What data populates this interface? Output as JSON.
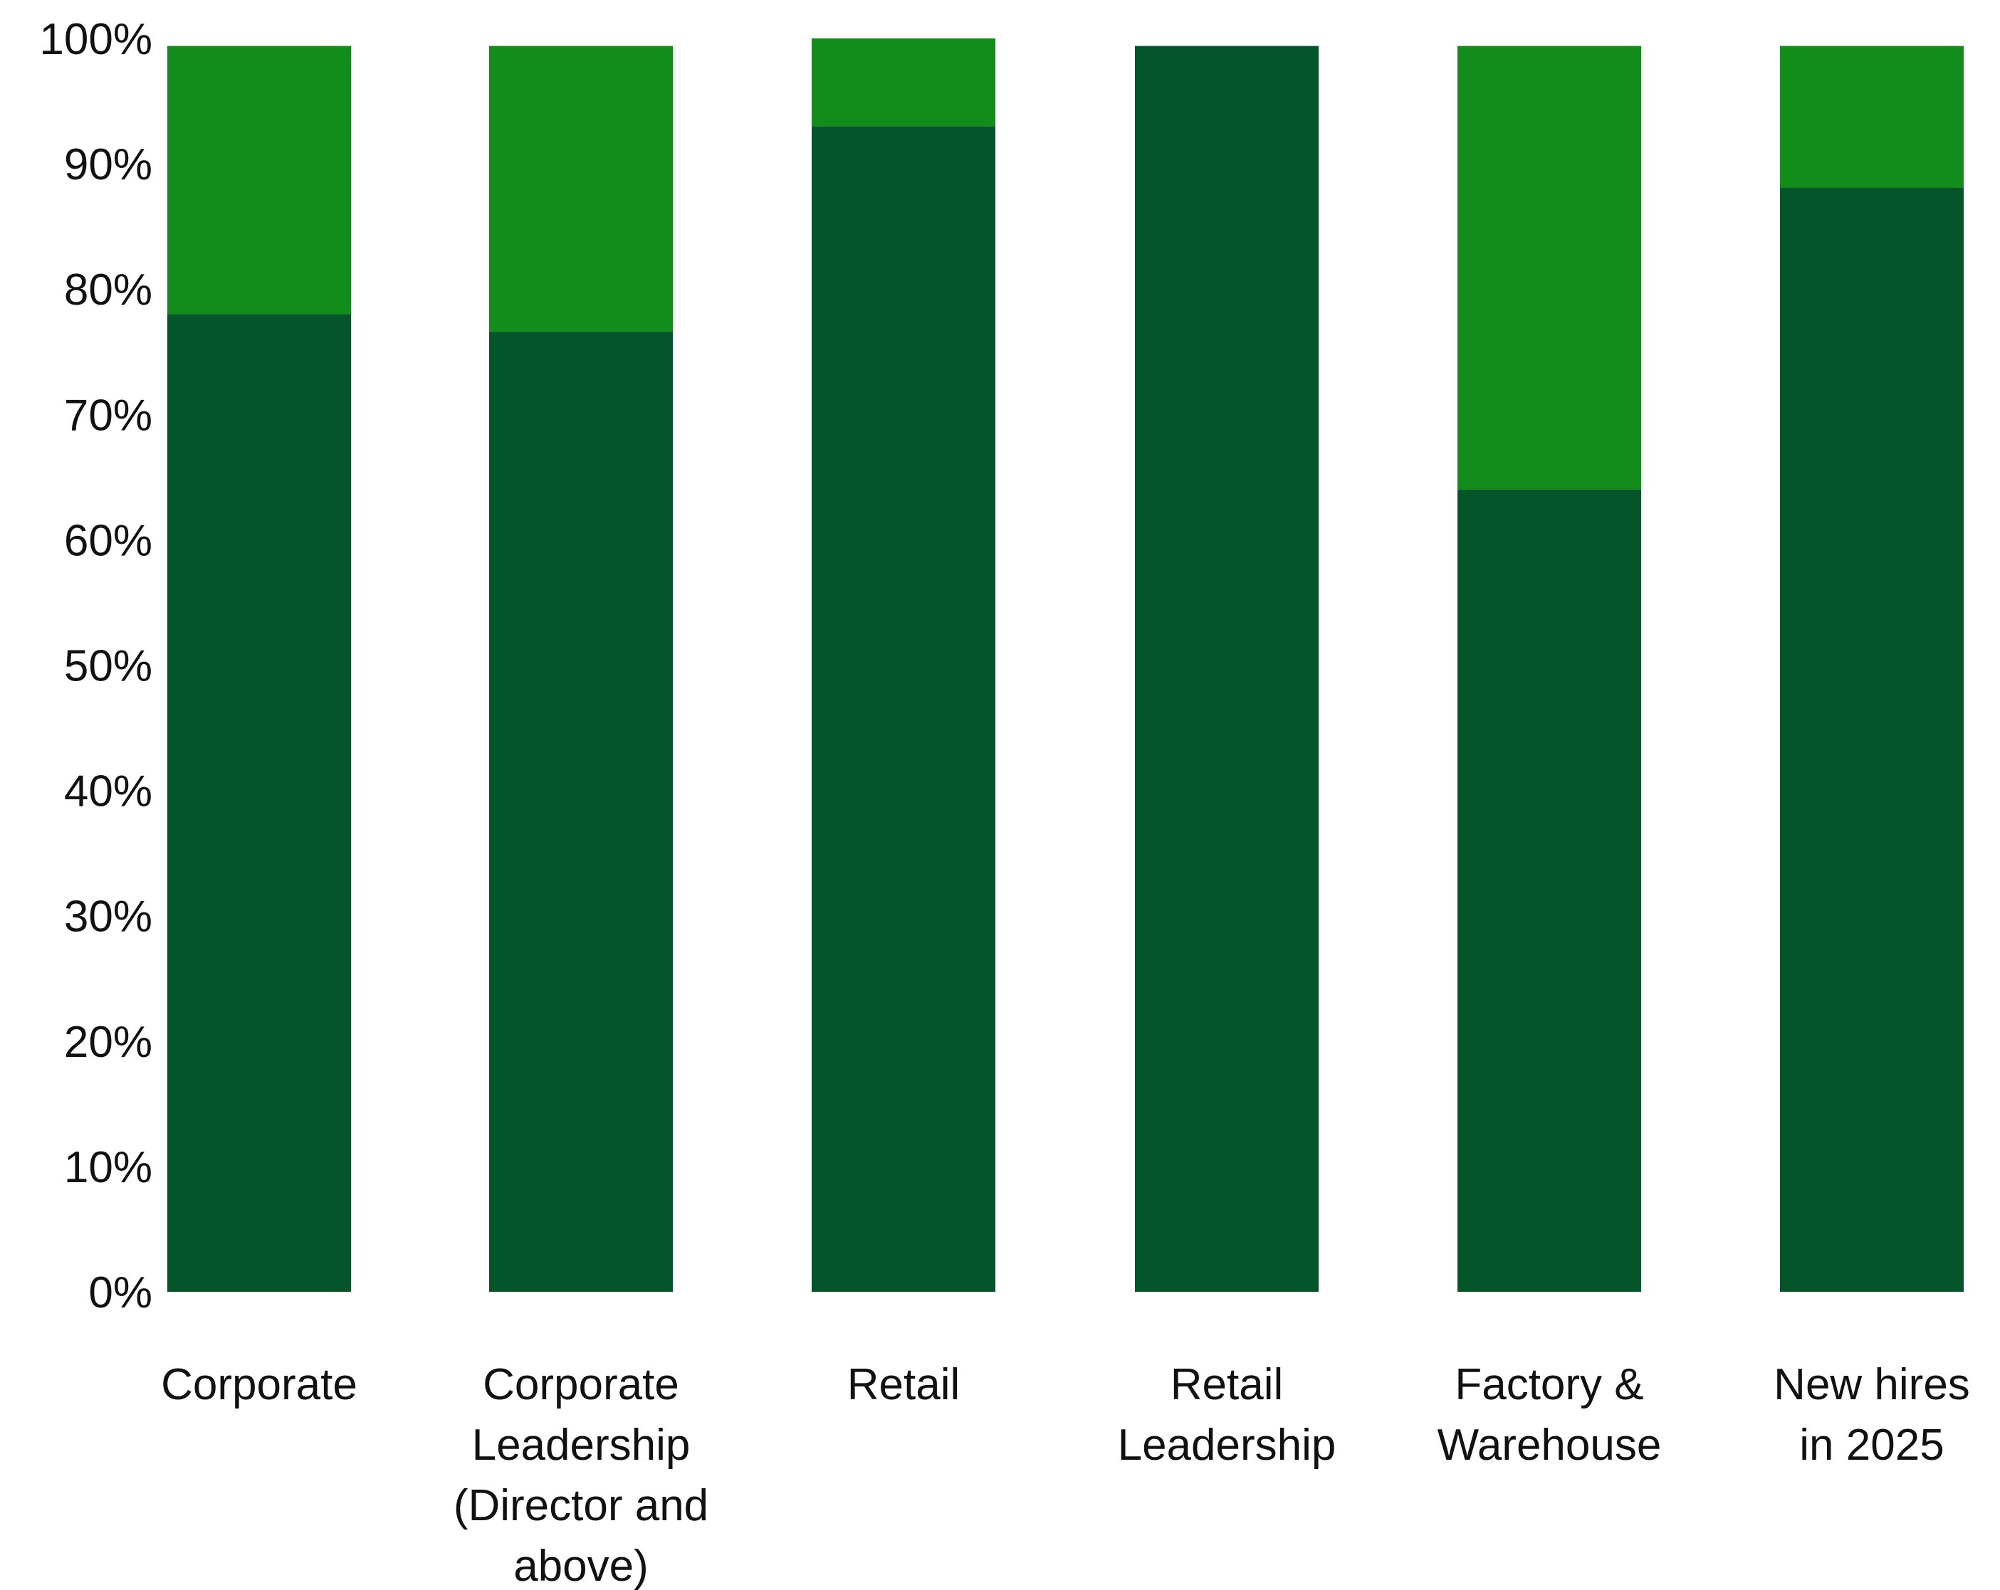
{
  "chart_data": {
    "type": "bar",
    "stacked": true,
    "categories": [
      [
        "Corporate"
      ],
      [
        "Corporate",
        "Leadership",
        "(Director and",
        "above)"
      ],
      [
        "Retail"
      ],
      [
        "Retail",
        "Leadership"
      ],
      [
        "Factory &",
        "Warehouse"
      ],
      [
        "New hires",
        "in 2025"
      ]
    ],
    "series": [
      {
        "color": "#05552b",
        "values": [
          78,
          76.6,
          93,
          99.4,
          64,
          88.1
        ]
      },
      {
        "color": "#128c1a",
        "values": [
          21.4,
          22.8,
          7,
          0,
          35.4,
          11.3
        ]
      }
    ],
    "yticks": [
      "0%",
      "10%",
      "20%",
      "30%",
      "40%",
      "50%",
      "60%",
      "70%",
      "80%",
      "90%",
      "100%"
    ],
    "ylim": [
      0,
      100
    ],
    "grid": false,
    "legend": "none"
  }
}
